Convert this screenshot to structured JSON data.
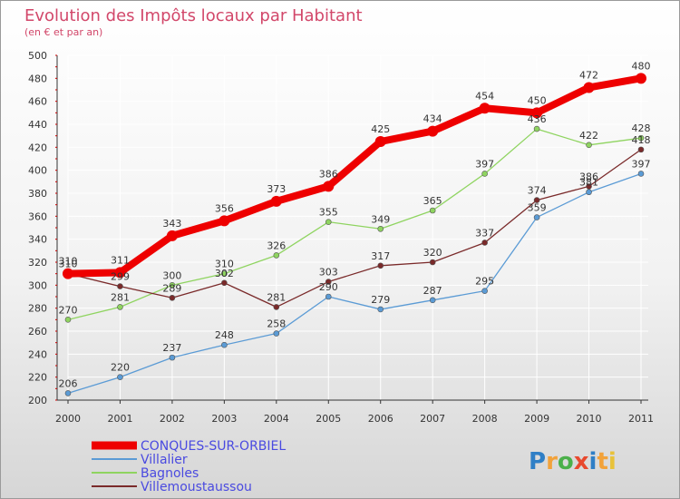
{
  "chart_data": {
    "type": "line",
    "title": "Evolution des Impôts locaux par Habitant",
    "subtitle": "(en € et par an)",
    "x": [
      "2000",
      "2001",
      "2002",
      "2003",
      "2004",
      "2005",
      "2006",
      "2007",
      "2008",
      "2009",
      "2010",
      "2011"
    ],
    "ylim": [
      200,
      500
    ],
    "yticks": [
      200,
      220,
      240,
      260,
      280,
      300,
      320,
      340,
      360,
      380,
      400,
      420,
      440,
      460,
      480,
      500
    ],
    "grid": true,
    "legend_position": "bottom-left",
    "series": [
      {
        "name": "CONQUES-SUR-ORBIEL",
        "color": "#ee0000",
        "emphasis": true,
        "values": [
          310,
          311,
          343,
          356,
          373,
          386,
          425,
          434,
          454,
          450,
          472,
          480
        ]
      },
      {
        "name": "Villalier",
        "color": "#5b9bd5",
        "values": [
          206,
          220,
          237,
          248,
          258,
          290,
          279,
          287,
          295,
          359,
          381,
          397
        ]
      },
      {
        "name": "Bagnoles",
        "color": "#8fd460",
        "values": [
          270,
          281,
          300,
          310,
          326,
          355,
          349,
          365,
          397,
          436,
          422,
          428
        ]
      },
      {
        "name": "Villemoustaussou",
        "color": "#7a2a2a",
        "values": [
          310,
          299,
          289,
          302,
          281,
          303,
          317,
          320,
          337,
          374,
          386,
          418
        ]
      }
    ]
  },
  "branding": {
    "logo_text": "Proxiti",
    "logo_colors": [
      "#2f7fc6",
      "#f2a23a",
      "#4bb04a",
      "#e8492e",
      "#2f7fc6",
      "#f2a23a",
      "#e8c23a"
    ]
  }
}
